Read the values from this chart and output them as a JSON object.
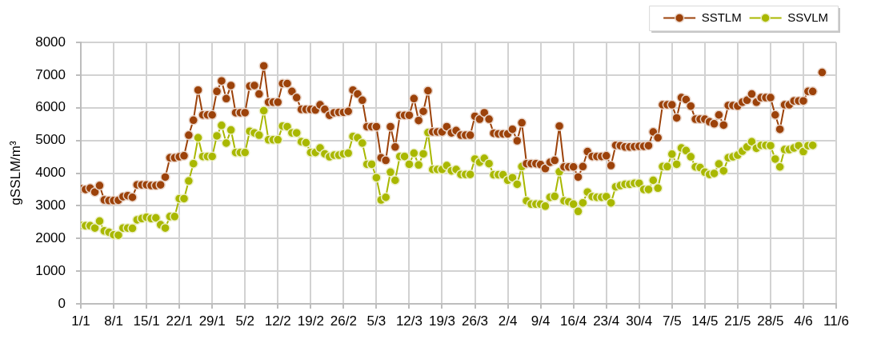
{
  "chart_data": {
    "type": "line",
    "ylabel": "gSSLM/m³",
    "x": [
      "--01-01",
      "--01-02",
      "--01-03",
      "--01-04",
      "--01-05",
      "--01-06",
      "--01-07",
      "--01-08",
      "--01-09",
      "--01-10",
      "--01-11",
      "--01-12",
      "--01-13",
      "--01-14",
      "--01-15",
      "--01-16",
      "--01-17",
      "--01-18",
      "--01-19",
      "--01-20",
      "--01-21",
      "--01-22",
      "--01-23",
      "--01-24",
      "--01-25",
      "--01-26",
      "--01-27",
      "--01-28",
      "--01-29",
      "--01-30",
      "--01-31",
      "--02-01",
      "--02-02",
      "--02-03",
      "--02-04",
      "--02-05",
      "--02-06",
      "--02-07",
      "--02-08",
      "--02-09",
      "--02-10",
      "--02-11",
      "--02-12",
      "--02-13",
      "--02-14",
      "--02-15",
      "--02-16",
      "--02-17",
      "--02-18",
      "--02-19",
      "--02-20",
      "--02-21",
      "--02-22",
      "--02-23",
      "--02-24",
      "--02-25",
      "--02-26",
      "--02-27",
      "--02-28",
      "--03-01",
      "--03-02",
      "--03-03",
      "--03-04",
      "--03-05",
      "--03-06",
      "--03-07",
      "--03-08",
      "--03-09",
      "--03-10",
      "--03-11",
      "--03-12",
      "--03-13",
      "--03-14",
      "--03-15",
      "--03-16",
      "--03-17",
      "--03-18",
      "--03-19",
      "--03-20",
      "--03-21",
      "--03-22",
      "--03-23",
      "--03-24",
      "--03-25",
      "--03-26",
      "--03-27",
      "--03-28",
      "--03-29",
      "--03-30",
      "--03-31",
      "--04-01",
      "--04-02",
      "--04-03",
      "--04-04",
      "--04-05",
      "--04-06",
      "--04-07",
      "--04-08",
      "--04-09",
      "--04-10",
      "--04-11",
      "--04-12",
      "--04-13",
      "--04-14",
      "--04-15",
      "--04-16",
      "--04-17",
      "--04-18",
      "--04-19",
      "--04-20",
      "--04-21",
      "--04-22",
      "--04-23",
      "--04-24",
      "--04-25",
      "--04-26",
      "--04-27",
      "--04-28",
      "--04-29",
      "--04-30",
      "--05-01",
      "--05-02",
      "--05-03",
      "--05-04",
      "--05-05",
      "--05-06",
      "--05-07",
      "--05-08",
      "--05-09",
      "--05-10",
      "--05-11",
      "--05-12",
      "--05-13",
      "--05-14",
      "--05-15",
      "--05-16",
      "--05-17",
      "--05-18",
      "--05-19",
      "--05-20",
      "--05-21",
      "--05-22",
      "--05-23",
      "--05-24",
      "--05-25",
      "--05-26",
      "--05-27",
      "--05-28",
      "--05-29",
      "--05-30",
      "--05-31",
      "--06-01",
      "--06-02",
      "--06-03",
      "--06-04",
      "--06-05",
      "--06-06",
      "--06-07",
      "--06-08"
    ],
    "series": [
      {
        "name": "SSTLM",
        "color": "#9c420a",
        "values": [
          3520,
          3500,
          3540,
          3420,
          3620,
          3180,
          3160,
          3160,
          3170,
          3280,
          3310,
          3260,
          3640,
          3640,
          3640,
          3620,
          3620,
          3640,
          3880,
          4470,
          4470,
          4500,
          4530,
          5160,
          5620,
          6540,
          5780,
          5780,
          5780,
          6500,
          6820,
          6280,
          6680,
          5850,
          5850,
          5850,
          6660,
          6680,
          6420,
          7280,
          6170,
          6170,
          6170,
          6740,
          6740,
          6500,
          6310,
          5950,
          5950,
          5950,
          5930,
          6090,
          5950,
          5770,
          5850,
          5860,
          5860,
          5890,
          6540,
          6420,
          6230,
          5420,
          5420,
          5420,
          4470,
          4390,
          5420,
          4800,
          5770,
          5770,
          5770,
          6280,
          5610,
          5890,
          6520,
          5260,
          5260,
          5260,
          5420,
          5230,
          5300,
          5160,
          5160,
          5160,
          5740,
          5650,
          5850,
          5650,
          5220,
          5200,
          5200,
          5200,
          5340,
          4990,
          5540,
          4290,
          4290,
          4290,
          4260,
          4140,
          4330,
          4390,
          5440,
          4190,
          4190,
          4190,
          3880,
          4200,
          4660,
          4510,
          4510,
          4510,
          4530,
          4230,
          4850,
          4840,
          4800,
          4800,
          4810,
          4820,
          4820,
          4840,
          5260,
          5080,
          6090,
          6090,
          6090,
          5690,
          6310,
          6250,
          6050,
          5650,
          5650,
          5650,
          5570,
          5510,
          5780,
          5470,
          6070,
          6070,
          6050,
          6170,
          6230,
          6420,
          6170,
          6310,
          6310,
          6310,
          5780,
          5340,
          6090,
          6090,
          6210,
          6210,
          6210,
          6500,
          6500,
          null,
          7080
        ]
      },
      {
        "name": "SSVLM",
        "color": "#a9b800",
        "values": [
          2400,
          2390,
          2390,
          2320,
          2530,
          2230,
          2190,
          2110,
          2100,
          2320,
          2320,
          2310,
          2570,
          2610,
          2650,
          2610,
          2630,
          2420,
          2320,
          2670,
          2670,
          3220,
          3220,
          3760,
          4290,
          5080,
          4510,
          4510,
          4510,
          5140,
          5460,
          4920,
          5320,
          4630,
          4630,
          4630,
          5280,
          5230,
          5160,
          5910,
          5020,
          5020,
          5020,
          5440,
          5420,
          5230,
          5230,
          4960,
          4930,
          4630,
          4630,
          4770,
          4590,
          4500,
          4550,
          4550,
          4590,
          4610,
          5120,
          5080,
          4920,
          4270,
          4270,
          3860,
          3180,
          3260,
          4030,
          3780,
          4510,
          4510,
          4270,
          4610,
          4250,
          4590,
          5240,
          4110,
          4110,
          4110,
          4230,
          4070,
          4110,
          3960,
          3960,
          3960,
          4430,
          4330,
          4450,
          4290,
          3950,
          3950,
          3950,
          3780,
          3860,
          3660,
          4200,
          3150,
          3050,
          3050,
          3050,
          2990,
          3260,
          3290,
          4040,
          3150,
          3120,
          3050,
          2830,
          3090,
          3420,
          3280,
          3260,
          3260,
          3280,
          3090,
          3580,
          3620,
          3660,
          3660,
          3690,
          3690,
          3500,
          3500,
          3780,
          3540,
          4200,
          4200,
          4580,
          4270,
          4770,
          4690,
          4500,
          4190,
          4170,
          4030,
          3960,
          3990,
          4280,
          4070,
          4470,
          4500,
          4550,
          4670,
          4800,
          4960,
          4760,
          4850,
          4850,
          4840,
          4430,
          4190,
          4720,
          4720,
          4770,
          4840,
          4660,
          4840,
          4850,
          null,
          null
        ]
      }
    ],
    "xlim": [
      "--01-01",
      "--06-11"
    ],
    "xticks": [
      {
        "value": "--01-01",
        "label": "1/1"
      },
      {
        "value": "--01-08",
        "label": "8/1"
      },
      {
        "value": "--01-15",
        "label": "15/1"
      },
      {
        "value": "--01-22",
        "label": "22/1"
      },
      {
        "value": "--01-29",
        "label": "29/1"
      },
      {
        "value": "--02-05",
        "label": "5/2"
      },
      {
        "value": "--02-12",
        "label": "12/2"
      },
      {
        "value": "--02-19",
        "label": "19/2"
      },
      {
        "value": "--02-26",
        "label": "26/2"
      },
      {
        "value": "--03-05",
        "label": "5/3"
      },
      {
        "value": "--03-12",
        "label": "12/3"
      },
      {
        "value": "--03-19",
        "label": "19/3"
      },
      {
        "value": "--03-26",
        "label": "26/3"
      },
      {
        "value": "--04-02",
        "label": "2/4"
      },
      {
        "value": "--04-09",
        "label": "9/4"
      },
      {
        "value": "--04-16",
        "label": "16/4"
      },
      {
        "value": "--04-23",
        "label": "23/4"
      },
      {
        "value": "--04-30",
        "label": "30/4"
      },
      {
        "value": "--05-07",
        "label": "7/5"
      },
      {
        "value": "--05-14",
        "label": "14/5"
      },
      {
        "value": "--05-21",
        "label": "21/5"
      },
      {
        "value": "--05-28",
        "label": "28/5"
      },
      {
        "value": "--06-04",
        "label": "4/6"
      },
      {
        "value": "--06-11",
        "label": "11/6"
      }
    ],
    "ylim": [
      0,
      8000
    ],
    "yticks": [
      0,
      1000,
      2000,
      3000,
      4000,
      5000,
      6000,
      7000,
      8000
    ],
    "grid": true,
    "legend": "top right",
    "marker": "circle",
    "line_style": "solid"
  }
}
